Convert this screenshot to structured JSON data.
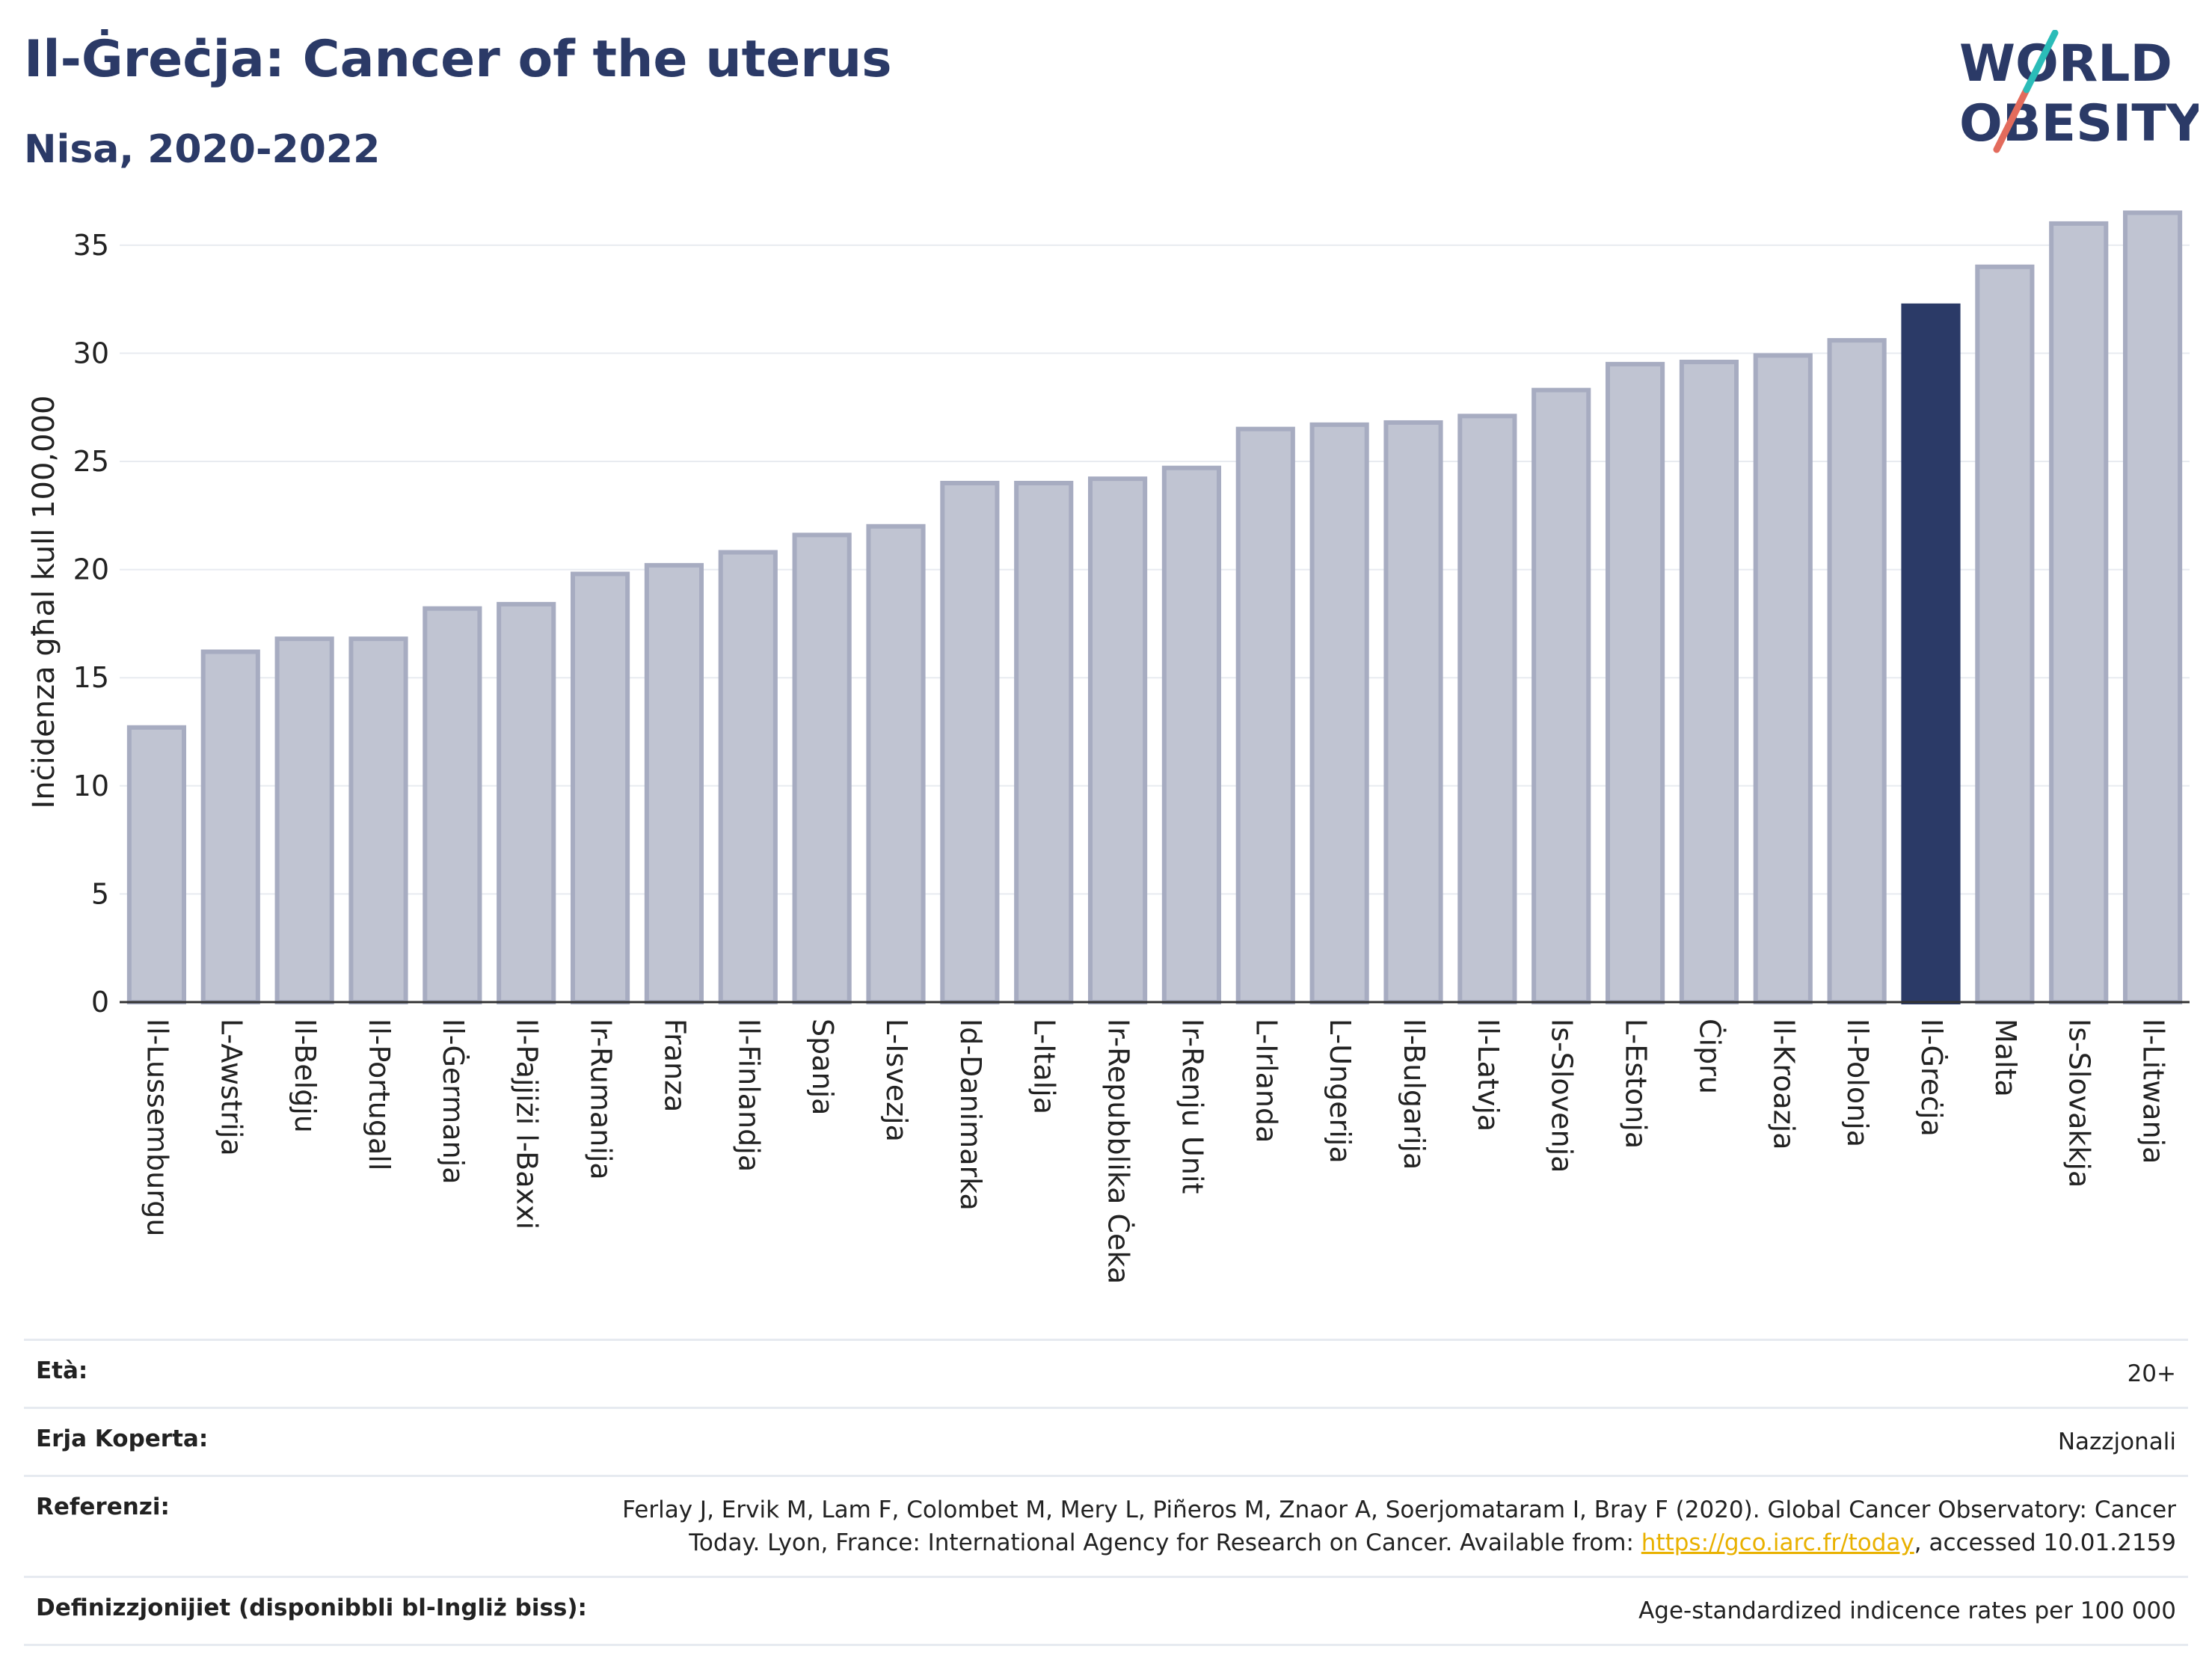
{
  "header": {
    "title": "Il-Ġreċja: Cancer of the uterus",
    "subtitle": "Nisa, 2020-2022",
    "logo": {
      "line1": "WORLD",
      "line2": "OBESITY",
      "accent_colors": [
        "#2bbcb8",
        "#e36b5c"
      ]
    }
  },
  "chart_data": {
    "type": "bar",
    "ylabel": "Inċidenza għal kull 100,000",
    "ylim": [
      0,
      37
    ],
    "yticks": [
      0,
      5,
      10,
      15,
      20,
      25,
      30,
      35
    ],
    "grid": true,
    "highlight": "Il-Ġreċja",
    "colors": {
      "bar": "#c0c4d2",
      "bar_border": "#a7acc1",
      "highlight": "#2b3a67"
    },
    "categories": [
      "Il-Lussemburgu",
      "L-Awstrija",
      "Il-Belġju",
      "Il-Portugall",
      "Il-Ġermanja",
      "Il-Pajjiżi l-Baxxi",
      "Ir-Rumanija",
      "Franza",
      "Il-Finlandja",
      "Spanja",
      "L-Isvezja",
      "Id-Danimarka",
      "L-Italja",
      "Ir-Repubblika Ċeka",
      "Ir-Renju Unit",
      "L-Irlanda",
      "L-Ungerija",
      "Il-Bulgarija",
      "Il-Latvja",
      "Is-Slovenja",
      "L-Estonja",
      "Ċipru",
      "Il-Kroazja",
      "Il-Polonja",
      "Il-Ġreċja",
      "Malta",
      "Is-Slovakkja",
      "Il-Litwanja"
    ],
    "values": [
      12.7,
      16.2,
      16.8,
      16.8,
      18.2,
      18.4,
      19.8,
      20.2,
      20.8,
      21.6,
      22.0,
      24.0,
      24.0,
      24.2,
      24.7,
      26.5,
      26.7,
      26.8,
      27.1,
      28.3,
      29.5,
      29.6,
      29.9,
      30.6,
      32.2,
      34.0,
      36.0,
      36.5
    ]
  },
  "info": {
    "age_label": "Età:",
    "age_value": "20+",
    "area_label": "Erja Koperta:",
    "area_value": "Nazzjonali",
    "ref_label": "Referenzi:",
    "ref_text_1": "Ferlay J, Ervik M, Lam F, Colombet M, Mery L, Piñeros M, Znaor A, Soerjomataram I, Bray F (2020). Global Cancer Observatory: Cancer Today. Lyon, France: International Agency for Research on Cancer. Available from: ",
    "ref_link": "https://gco.iarc.fr/today",
    "ref_text_2": ", accessed 10.01.2159",
    "def_label": "Definizzjonijiet (disponibbli bl-Ingliż biss):",
    "def_value": "Age-standardized indicence rates per 100 000"
  }
}
